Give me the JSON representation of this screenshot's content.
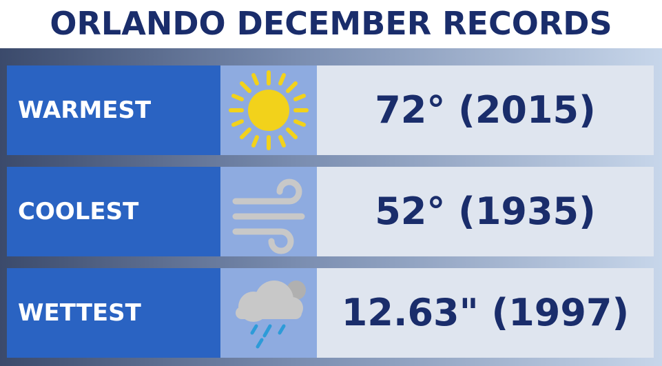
{
  "header": {
    "title": "ORLANDO DECEMBER RECORDS"
  },
  "rows": [
    {
      "label": "WARMEST",
      "value": "72° (2015)"
    },
    {
      "label": "COOLEST",
      "value": "52° (1935)"
    },
    {
      "label": "WETTEST",
      "value": "12.63\" (1997)"
    }
  ]
}
